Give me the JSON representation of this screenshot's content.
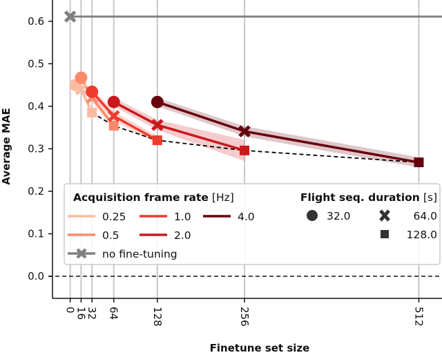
{
  "chart_data": {
    "type": "line",
    "xlabel": "Finetune set size",
    "ylabel": "Average MAE",
    "xlim": [
      -26,
      546
    ],
    "ylim": [
      -0.052,
      0.65
    ],
    "x_ticks": [
      0,
      16,
      32,
      64,
      128,
      256,
      512
    ],
    "x_tick_labels": [
      "0",
      "16",
      "32",
      "64",
      "128",
      "256",
      "512"
    ],
    "y_ticks": [
      0.0,
      0.1,
      0.2,
      0.3,
      0.4,
      0.5,
      0.6
    ],
    "y_tick_labels": [
      "0.0",
      "0.1",
      "0.2",
      "0.3",
      "0.4",
      "0.5",
      "0.6"
    ],
    "grid": "vertical lines at x ticks",
    "legend_placement": "lower center",
    "series": [
      {
        "name": "0.25",
        "color": "#fcbba1",
        "x": [
          8,
          16,
          32
        ],
        "y": [
          0.45,
          0.44,
          0.385
        ],
        "std": [
          0.012,
          0.012,
          0.012
        ]
      },
      {
        "name": "0.5",
        "color": "#fc8a6a",
        "x": [
          16,
          32,
          64
        ],
        "y": [
          0.467,
          0.42,
          0.354
        ],
        "std": [
          0.01,
          0.01,
          0.01
        ]
      },
      {
        "name": "1.0",
        "color": "#ef3b2c",
        "x": [
          32,
          64,
          128
        ],
        "y": [
          0.434,
          0.377,
          0.32
        ],
        "std": [
          0.01,
          0.01,
          0.01
        ]
      },
      {
        "name": "2.0",
        "color": "#cb181d",
        "x": [
          64,
          128,
          256
        ],
        "y": [
          0.41,
          0.356,
          0.296
        ],
        "std": [
          0.01,
          0.012,
          0.025
        ]
      },
      {
        "name": "4.0",
        "color": "#67000d",
        "x": [
          128,
          256,
          512
        ],
        "y": [
          0.41,
          0.341,
          0.268
        ],
        "std": [
          0.01,
          0.012,
          0.012
        ]
      }
    ],
    "markers_by_duration": {
      "32.0": "circle",
      "64.0": "cross",
      "128.0": "square"
    },
    "best_dashed": {
      "color": "#000000",
      "x": [
        32,
        64,
        128,
        256,
        512
      ],
      "y": [
        0.385,
        0.354,
        0.32,
        0.296,
        0.268
      ]
    },
    "no_fine_tuning": {
      "name": "no fine-tuning",
      "color": "#808080",
      "x": 0,
      "y": 0.611
    },
    "zero_line": {
      "y": 0.0,
      "style": "dashed"
    }
  },
  "legend": {
    "rate_title": "Acquisition frame rate",
    "rate_unit": "[Hz]",
    "duration_title": "Flight seq. duration",
    "duration_unit": "[s]",
    "durations": [
      "32.0",
      "64.0",
      "128.0"
    ],
    "no_ft_label": "no fine-tuning"
  }
}
